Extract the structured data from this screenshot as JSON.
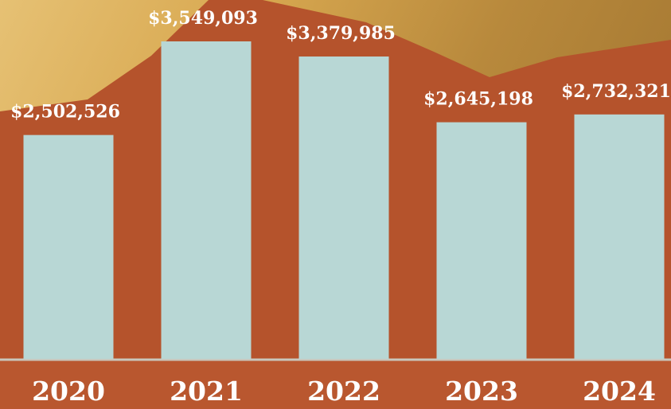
{
  "chart_data": {
    "type": "bar",
    "categories": [
      "2020",
      "2021",
      "2022",
      "2023",
      "2024"
    ],
    "values": [
      2502526,
      3549093,
      3379985,
      2645198,
      2732321
    ],
    "value_labels": [
      "$2,502,526",
      "$3,549,093",
      "$3,379,985",
      "$2,645,198",
      "$2,732,321"
    ],
    "color": "#b8d7d5"
  }
}
